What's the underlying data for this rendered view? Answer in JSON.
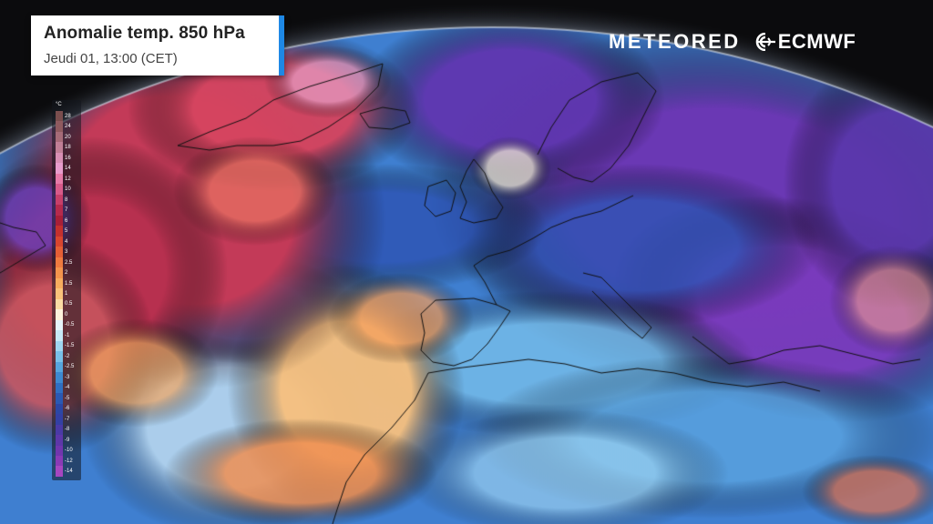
{
  "header": {
    "title": "Anomalie temp. 850 hPa",
    "subtitle": "Jeudi 01, 13:00 (CET)"
  },
  "brands": {
    "meteored": "METEORED",
    "ecmwf": "ECMWF"
  },
  "legend": {
    "unit": "°C",
    "entries": [
      {
        "label": "28",
        "color": "#7a4e4e"
      },
      {
        "label": "24",
        "color": "#8f5a5f"
      },
      {
        "label": "20",
        "color": "#a66b78"
      },
      {
        "label": "18",
        "color": "#c07f96"
      },
      {
        "label": "16",
        "color": "#d88fb4"
      },
      {
        "label": "14",
        "color": "#e89ccc"
      },
      {
        "label": "12",
        "color": "#e67aa8"
      },
      {
        "label": "10",
        "color": "#d85a8a"
      },
      {
        "label": "8",
        "color": "#c73f6a"
      },
      {
        "label": "7",
        "color": "#b52a4d"
      },
      {
        "label": "6",
        "color": "#a71f38"
      },
      {
        "label": "5",
        "color": "#c4302e"
      },
      {
        "label": "4",
        "color": "#d8452f"
      },
      {
        "label": "3",
        "color": "#e45e35"
      },
      {
        "label": "2.5",
        "color": "#ee7a3f"
      },
      {
        "label": "2",
        "color": "#f3944c"
      },
      {
        "label": "1.5",
        "color": "#f7ad5e"
      },
      {
        "label": "1",
        "color": "#fac37a"
      },
      {
        "label": "0.5",
        "color": "#fbdca4"
      },
      {
        "label": "0",
        "color": "#fdf2dc"
      },
      {
        "label": "-0.5",
        "color": "#e6f5fb"
      },
      {
        "label": "-1",
        "color": "#c6e9f7"
      },
      {
        "label": "-1.5",
        "color": "#9fd6f0"
      },
      {
        "label": "-2",
        "color": "#78c0e8"
      },
      {
        "label": "-2.5",
        "color": "#56a5dd"
      },
      {
        "label": "-3",
        "color": "#3d89d0"
      },
      {
        "label": "-4",
        "color": "#2f6fc2"
      },
      {
        "label": "-5",
        "color": "#2a59b3"
      },
      {
        "label": "-6",
        "color": "#2b47a5"
      },
      {
        "label": "-7",
        "color": "#3340a4"
      },
      {
        "label": "-8",
        "color": "#4a3aa6"
      },
      {
        "label": "-9",
        "color": "#5d37a9"
      },
      {
        "label": "-10",
        "color": "#7136ae"
      },
      {
        "label": "-12",
        "color": "#8a3ab6"
      },
      {
        "label": "-14",
        "color": "#a646c0"
      }
    ]
  },
  "map": {
    "space_color": "#0b0b0d",
    "limb_glow_color": "#c9d2dc",
    "coastline_color": "#111111"
  }
}
